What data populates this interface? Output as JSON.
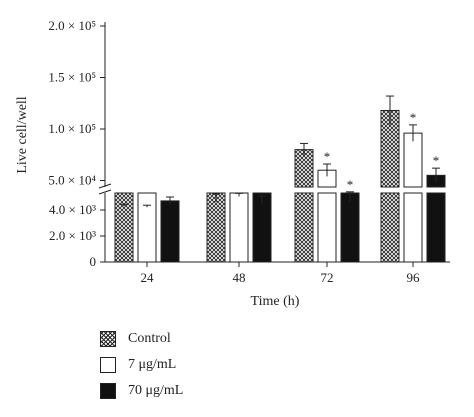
{
  "chart_data": {
    "type": "bar",
    "xlabel": "Time (h)",
    "ylabel": "Live cell/well",
    "categories": [
      "24",
      "48",
      "72",
      "96"
    ],
    "upper_axis": {
      "ylim": [
        0,
        200000
      ],
      "tick_labels": [
        "5.0 × 10⁴",
        "1.0 × 10⁵",
        "1.5 × 10⁵",
        "2.0 × 10⁵"
      ],
      "tick_values": [
        50000,
        100000,
        150000,
        200000
      ]
    },
    "lower_axis": {
      "ylim": [
        0,
        5000
      ],
      "tick_labels": [
        "0",
        "2.0 × 10³",
        "4.0 × 10³"
      ],
      "tick_values": [
        0,
        2000,
        4000
      ]
    },
    "axis_break": true,
    "series": [
      {
        "name": "Control",
        "fill": "crosshatch",
        "values": [
          26000,
          33000,
          80000,
          118000
        ],
        "errors": [
          1000,
          4000,
          6000,
          14000
        ],
        "significance": [
          "",
          "",
          "",
          ""
        ]
      },
      {
        "name": "7 μg/mL",
        "fill": "#ffffff",
        "values": [
          25000,
          36000,
          60000,
          96000
        ],
        "errors": [
          1000,
          1500,
          6000,
          8000
        ],
        "significance": [
          "",
          "",
          "*",
          "*"
        ]
      },
      {
        "name": "70 μg/mL",
        "fill": "#111111",
        "values": [
          4700,
          31000,
          34000,
          55000
        ],
        "errors": [
          300,
          4000,
          5000,
          7000
        ],
        "significance": [
          "",
          "",
          "*",
          "*"
        ]
      }
    ]
  },
  "legend": [
    {
      "label": "Control"
    },
    {
      "label": "7 μg/mL"
    },
    {
      "label": "70 μg/mL"
    }
  ]
}
